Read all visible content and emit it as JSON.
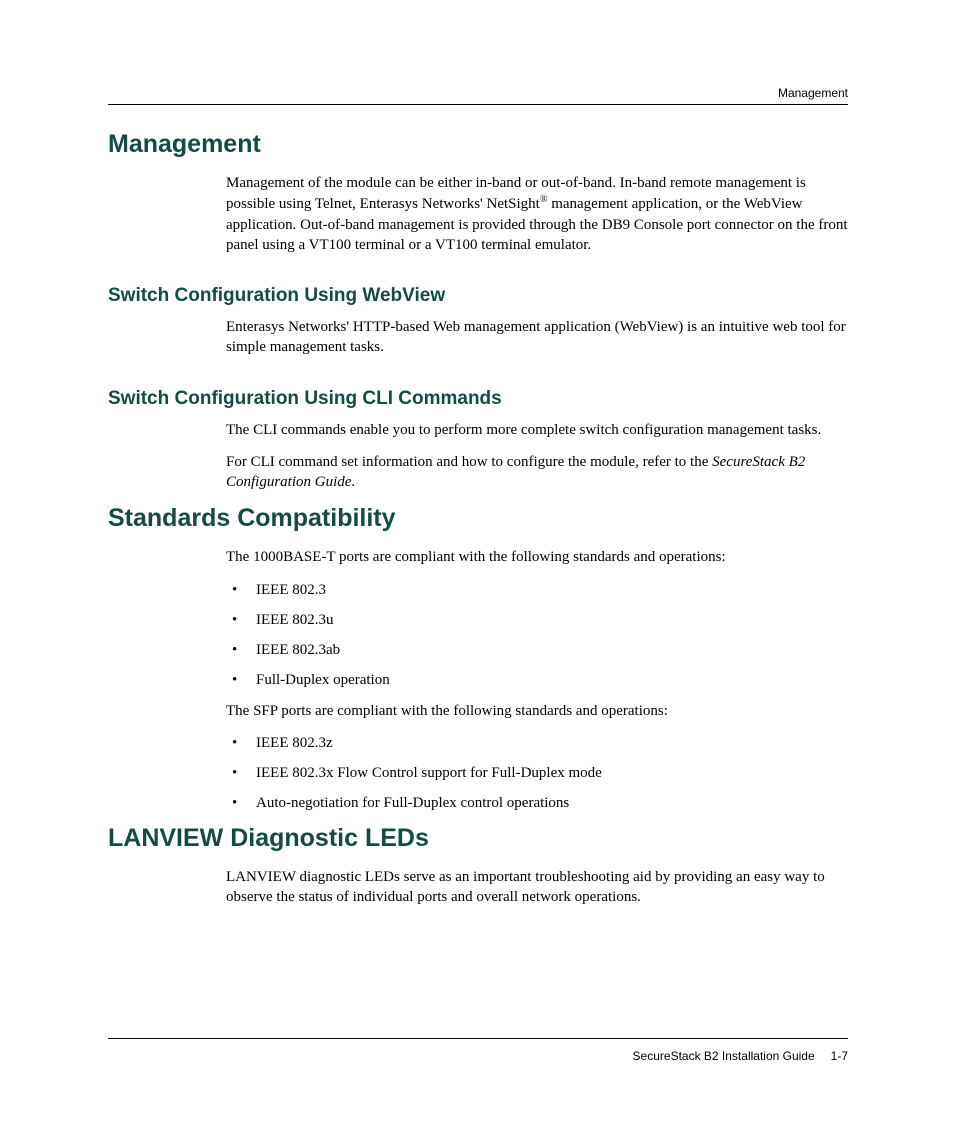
{
  "colors": {
    "heading": "#144b44",
    "text": "#000000",
    "background": "#ffffff",
    "rule": "#000000"
  },
  "typography": {
    "heading_family": "Arial",
    "body_family": "Palatino",
    "h1_size_pt": 19,
    "h2_size_pt": 14,
    "body_size_pt": 11,
    "running_head_size_pt": 9,
    "footer_size_pt": 9
  },
  "running_head": "Management",
  "sections": {
    "management": {
      "title": "Management",
      "intro_pre": "Management of the module can be either in-band or out-of-band. In-band remote management is possible using Telnet, Enterasys Networks' NetSight",
      "reg": "®",
      "intro_post": " management application, or the WebView application. Out-of-band management is provided through the DB9 Console port connector on the front panel using a VT100 terminal or a VT100 terminal emulator.",
      "webview": {
        "title": "Switch Configuration Using WebView",
        "p1": "Enterasys Networks' HTTP-based Web management application (WebView) is an intuitive web tool for simple management tasks."
      },
      "cli": {
        "title": "Switch Configuration Using CLI Commands",
        "p1": "The CLI commands enable you to perform more complete switch configuration management tasks.",
        "p2_pre": "For CLI command set information and how to configure the module, refer to the ",
        "p2_em": "SecureStack B2 Configuration Guide",
        "p2_post": "."
      }
    },
    "standards": {
      "title": "Standards Compatibility",
      "p1": "The 1000BASE-T ports are compliant with the following standards and operations:",
      "list1": [
        "IEEE 802.3",
        "IEEE 802.3u",
        "IEEE 802.3ab",
        "Full-Duplex operation"
      ],
      "p2": "The SFP ports are compliant with the following standards and operations:",
      "list2": [
        "IEEE 802.3z",
        "IEEE 802.3x Flow Control support for Full-Duplex mode",
        "Auto-negotiation for Full-Duplex control operations"
      ]
    },
    "lanview": {
      "title": "LANVIEW Diagnostic LEDs",
      "p1": "LANVIEW diagnostic LEDs serve as an important troubleshooting aid by providing an easy way to observe the status of individual ports and overall network operations."
    }
  },
  "footer": {
    "doc": "SecureStack B2 Installation Guide",
    "page": "1-7"
  }
}
